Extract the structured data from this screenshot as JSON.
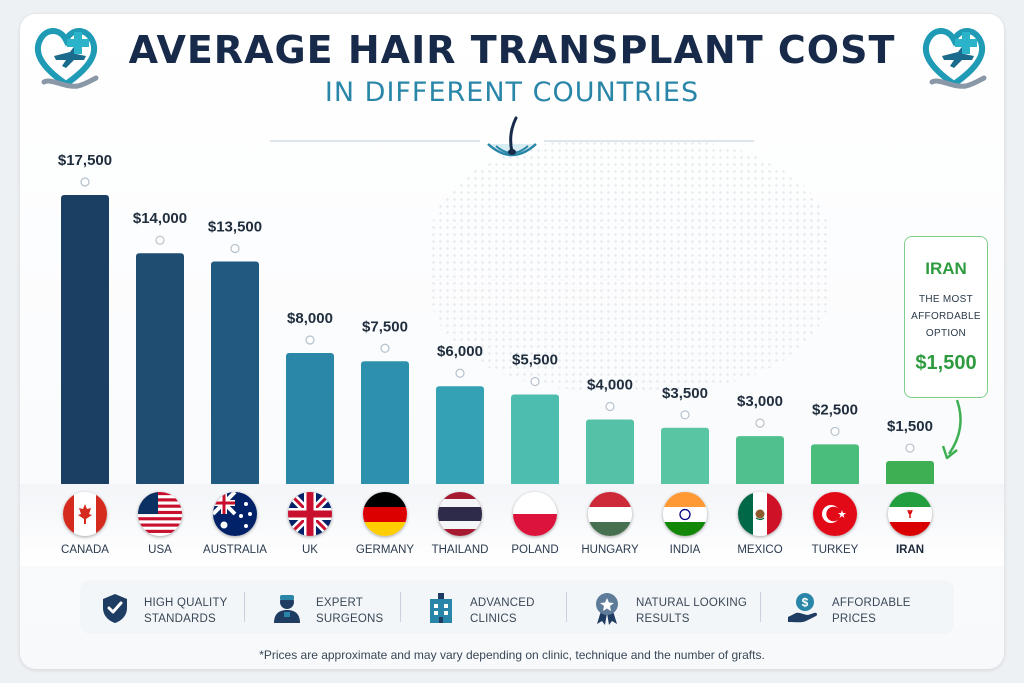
{
  "title": "AVERAGE HAIR TRANSPLANT COST",
  "subtitle": "IN DIFFERENT COUNTRIES",
  "chart_data": {
    "type": "bar",
    "title": "AVERAGE HAIR TRANSPLANT COST",
    "subtitle": "IN DIFFERENT COUNTRIES",
    "categories": [
      "CANADA",
      "USA",
      "AUSTRALIA",
      "UK",
      "GERMANY",
      "THAILAND",
      "POLAND",
      "HUNGARY",
      "INDIA",
      "MEXICO",
      "TURKEY",
      "IRAN"
    ],
    "values": [
      17500,
      14000,
      13500,
      8000,
      7500,
      6000,
      5500,
      4000,
      3500,
      3000,
      2500,
      1500
    ],
    "value_labels": [
      "$17,500",
      "$14,000",
      "$13,500",
      "$8,000",
      "$7,500",
      "$6,000",
      "$5,500",
      "$4,000",
      "$3,500",
      "$3,000",
      "$2,500",
      "$1,500"
    ],
    "bar_colors": [
      "#1b3f63",
      "#1f4d72",
      "#215a80",
      "#2a87a8",
      "#2d91ad",
      "#34a2b4",
      "#4dbdb0",
      "#55c2a8",
      "#5ac5a3",
      "#50c08e",
      "#4bbd7b",
      "#3eb053"
    ],
    "ylim": [
      0,
      18500
    ],
    "grid": false,
    "legend": "none"
  },
  "callout": {
    "country": "IRAN",
    "text_lines": [
      "THE MOST",
      "AFFORDABLE",
      "OPTION"
    ],
    "price": "$1,500",
    "color": "#2e9b3f"
  },
  "features": [
    {
      "icon": "shield-check-icon",
      "line1": "HIGH QUALITY",
      "line2": "STANDARDS"
    },
    {
      "icon": "surgeon-icon",
      "line1": "EXPERT",
      "line2": "SURGEONS"
    },
    {
      "icon": "clinic-building-icon",
      "line1": "ADVANCED",
      "line2": "CLINICS"
    },
    {
      "icon": "award-ribbon-icon",
      "line1": "NATURAL LOOKING",
      "line2": "RESULTS"
    },
    {
      "icon": "hand-dollar-icon",
      "line1": "AFFORDABLE",
      "line2": "PRICES"
    }
  ],
  "footnote": "*Prices are approximate and may vary depending on clinic, technique and the number of grafts.",
  "colors": {
    "navy": "#172a4a",
    "teal": "#2a86a8",
    "green": "#2e9b3f"
  }
}
